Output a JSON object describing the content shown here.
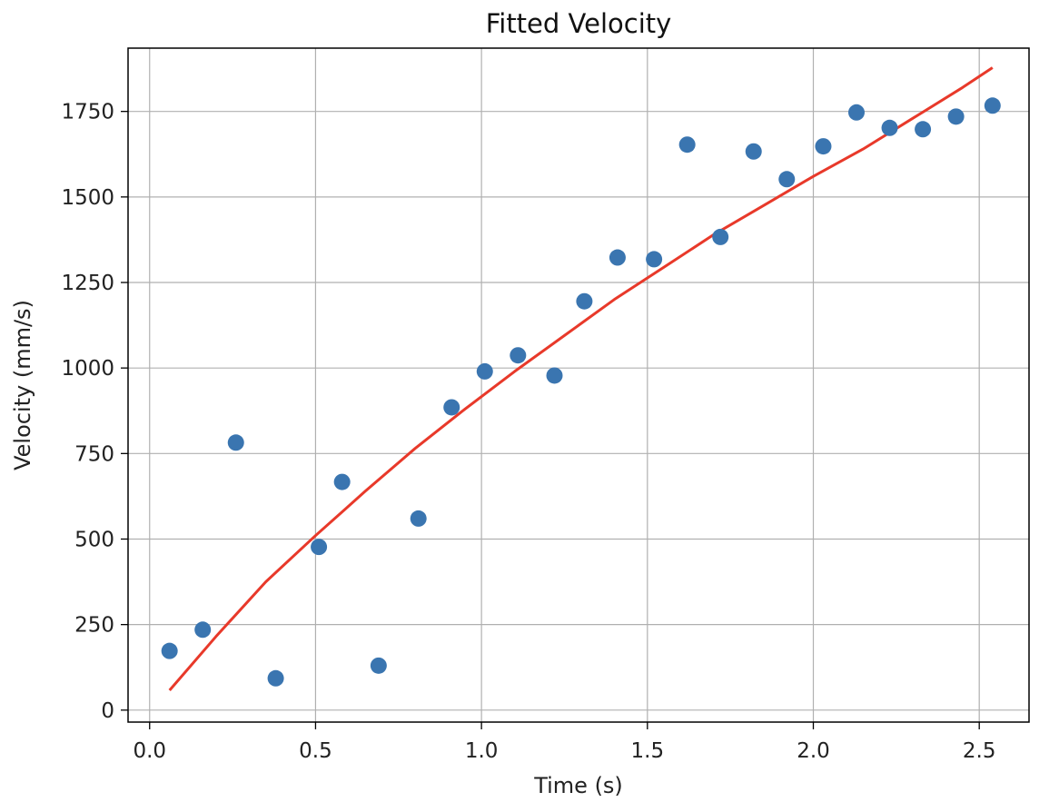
{
  "chart_data": {
    "type": "scatter",
    "title": "Fitted Velocity",
    "xlabel": "Time (s)",
    "ylabel": "Velocity (mm/s)",
    "xlim": [
      -0.065,
      2.65
    ],
    "ylim": [
      -35,
      1935
    ],
    "xticks": [
      0.0,
      0.5,
      1.0,
      1.5,
      2.0,
      2.5
    ],
    "xtick_labels": [
      "0.0",
      "0.5",
      "1.0",
      "1.5",
      "2.0",
      "2.5"
    ],
    "yticks": [
      0,
      250,
      500,
      750,
      1000,
      1250,
      1500,
      1750
    ],
    "ytick_labels": [
      "0",
      "250",
      "500",
      "750",
      "1000",
      "1250",
      "1500",
      "1750"
    ],
    "grid": true,
    "colors": {
      "points": "#3a75b0",
      "fit": "#e8392a",
      "grid": "#b0b0b0",
      "frame": "#000000"
    },
    "series": [
      {
        "type": "scatter",
        "x": [
          0.06,
          0.16,
          0.26,
          0.38,
          0.51,
          0.58,
          0.69,
          0.81,
          0.91,
          1.01,
          1.11,
          1.22,
          1.31,
          1.41,
          1.52,
          1.62,
          1.72,
          1.82,
          1.92,
          2.03,
          2.13,
          2.23,
          2.33,
          2.43,
          2.54
        ],
        "y": [
          173,
          235,
          782,
          93,
          477,
          667,
          130,
          560,
          885,
          990,
          1037,
          978,
          1195,
          1323,
          1318,
          1653,
          1383,
          1633,
          1552,
          1648,
          1747,
          1702,
          1698,
          1735,
          1767
        ]
      },
      {
        "type": "line",
        "x": [
          0.06,
          0.2,
          0.35,
          0.5,
          0.65,
          0.8,
          0.95,
          1.1,
          1.25,
          1.4,
          1.55,
          1.7,
          1.85,
          2.0,
          2.15,
          2.3,
          2.45,
          2.54
        ],
        "y": [
          58,
          215,
          375,
          510,
          640,
          765,
          880,
          990,
          1095,
          1200,
          1295,
          1390,
          1475,
          1560,
          1640,
          1730,
          1820,
          1878
        ]
      }
    ]
  }
}
